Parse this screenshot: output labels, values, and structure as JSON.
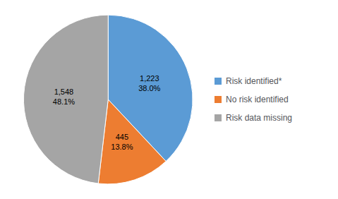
{
  "chart_data": {
    "type": "pie",
    "categories": [
      "Risk identified*",
      "No risk identified",
      "Risk data missing"
    ],
    "values": [
      1223,
      445,
      1548
    ],
    "value_labels": [
      "1,223",
      "445",
      "1,548"
    ],
    "percentages": [
      38.0,
      13.8,
      48.1
    ],
    "percentage_labels": [
      "38.0%",
      "13.8%",
      "48.1%"
    ],
    "colors": [
      "#5B9BD5",
      "#ED7D31",
      "#A5A5A5"
    ],
    "data_labels": true,
    "legend": "right"
  }
}
